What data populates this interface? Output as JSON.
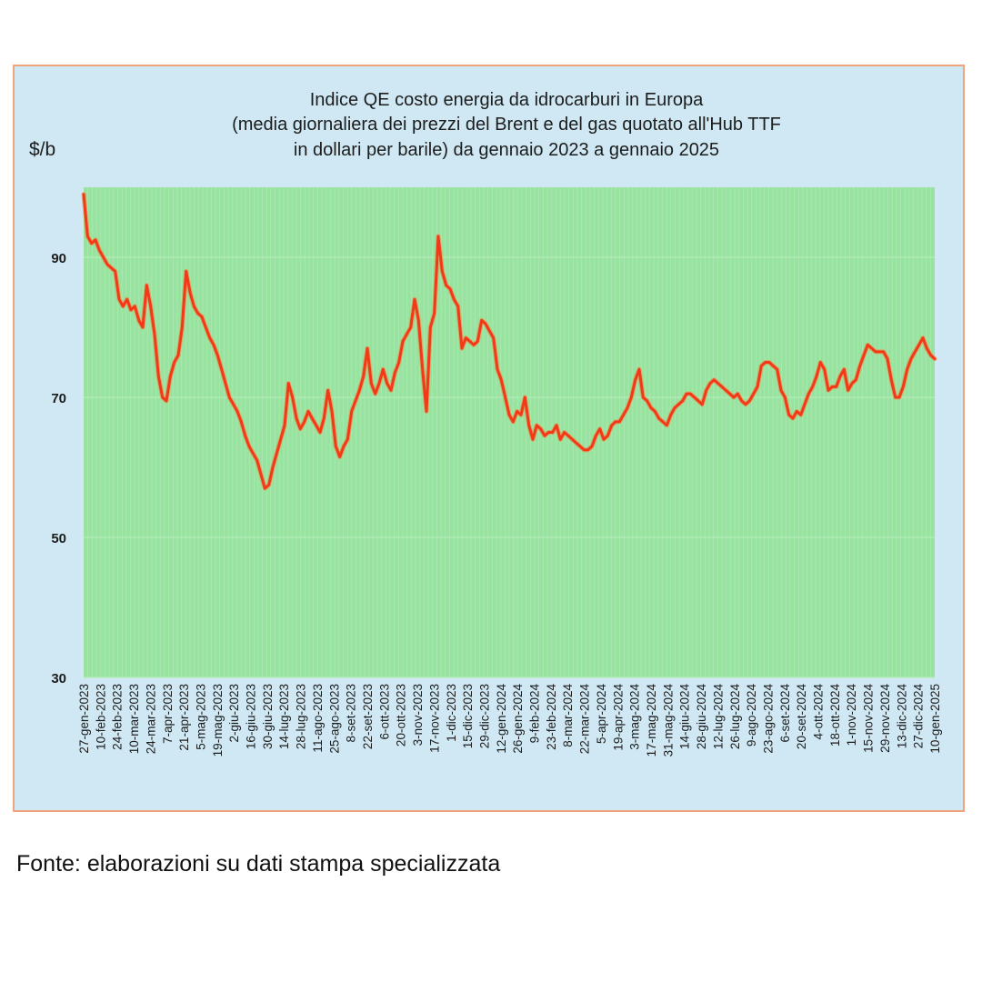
{
  "chart_data": {
    "type": "line",
    "title_lines": [
      "Indice QE costo energia da idrocarburi in Europa",
      "(media giornaliera dei prezzi del Brent e del gas quotato all'Hub TTF",
      "in dollari per barile) da gennaio 2023 a gennaio 2025"
    ],
    "ylabel": "$/b",
    "xlabel": "",
    "ylim": [
      30,
      100
    ],
    "yticks": [
      30,
      50,
      70,
      90
    ],
    "grid": true,
    "legend": "none",
    "x_tick_labels": [
      "27-gen-2023",
      "10-feb-2023",
      "24-feb-2023",
      "10-mar-2023",
      "24-mar-2023",
      "7-apr-2023",
      "21-apr-2023",
      "5-mag-2023",
      "19-mag-2023",
      "2-giu-2023",
      "16-giu-2023",
      "30-giu-2023",
      "14-lug-2023",
      "28-lug-2023",
      "11-ago-2023",
      "25-ago-2023",
      "8-set-2023",
      "22-set-2023",
      "6-ott-2023",
      "20-ott-2023",
      "3-nov-2023",
      "17-nov-2023",
      "1-dic-2023",
      "15-dic-2023",
      "29-dic-2023",
      "12-gen-2024",
      "26-gen-2024",
      "9-feb-2024",
      "23-feb-2024",
      "8-mar-2024",
      "22-mar-2024",
      "5-apr-2024",
      "19-apr-2024",
      "3-mag-2024",
      "17-mag-2024",
      "31-mag-2024",
      "14-giu-2024",
      "28-giu-2024",
      "12-lug-2024",
      "26-lug-2024",
      "9-ago-2024",
      "23-ago-2024",
      "6-set-2024",
      "20-set-2024",
      "4-ott-2024",
      "18-ott-2024",
      "1-nov-2024",
      "15-nov-2024",
      "29-nov-2024",
      "13-dic-2024",
      "27-dic-2024",
      "10-gen-2025"
    ],
    "series": [
      {
        "name": "Indice QE",
        "color": "#f23a18",
        "values": [
          99,
          93,
          92,
          92.5,
          91,
          90,
          89,
          88.5,
          88,
          84,
          83,
          84,
          82.5,
          83,
          81,
          80,
          86,
          83,
          79,
          73,
          70,
          69.5,
          73,
          75,
          76,
          80,
          88,
          85,
          83,
          82,
          81.5,
          80,
          78.5,
          77.5,
          76,
          74,
          72,
          70,
          69,
          68,
          66.5,
          64.5,
          63,
          62,
          61,
          59,
          57,
          57.5,
          60,
          62,
          64,
          66,
          72,
          70,
          67,
          65.5,
          66.5,
          68,
          67,
          66,
          65,
          67,
          71,
          68,
          63,
          61.5,
          63,
          64,
          68,
          69.5,
          71,
          73,
          77,
          72,
          70.5,
          72,
          74,
          72,
          71,
          73.5,
          75,
          78,
          79,
          80,
          84,
          81,
          74,
          68,
          80,
          82,
          93,
          88,
          86,
          85.5,
          84,
          83,
          77,
          78.5,
          78,
          77.5,
          78,
          81,
          80.5,
          79.5,
          78.5,
          74,
          72.5,
          70,
          67.5,
          66.5,
          68,
          67.5,
          70,
          66,
          64,
          66,
          65.5,
          64.5,
          65,
          65,
          66,
          64,
          65,
          64.5,
          64,
          63.5,
          63,
          62.5,
          62.5,
          63,
          64.5,
          65.5,
          64,
          64.5,
          66,
          66.5,
          66.5,
          67.5,
          68.5,
          70,
          72.5,
          74,
          70,
          69.5,
          68.5,
          68,
          67,
          66.5,
          66,
          67.5,
          68.5,
          69,
          69.5,
          70.5,
          70.5,
          70,
          69.5,
          69,
          71,
          72,
          72.5,
          72,
          71.5,
          71,
          70.5,
          70,
          70.5,
          69.5,
          69,
          69.5,
          70.5,
          71.5,
          74.5,
          75,
          75,
          74.5,
          74,
          71,
          70,
          67.5,
          67,
          68,
          67.5,
          69,
          70.5,
          71.5,
          73,
          75,
          74,
          71,
          71.5,
          71.5,
          73,
          74,
          71,
          72,
          72.5,
          74.5,
          76,
          77.5,
          77,
          76.5,
          76.5,
          76.5,
          75.5,
          72.5,
          70,
          70,
          71.5,
          74,
          75.5,
          76.5,
          77.5,
          78.5,
          77,
          76,
          75.5
        ]
      }
    ]
  },
  "footer": {
    "source": "Fonte: elaborazioni su dati stampa specializzata"
  }
}
